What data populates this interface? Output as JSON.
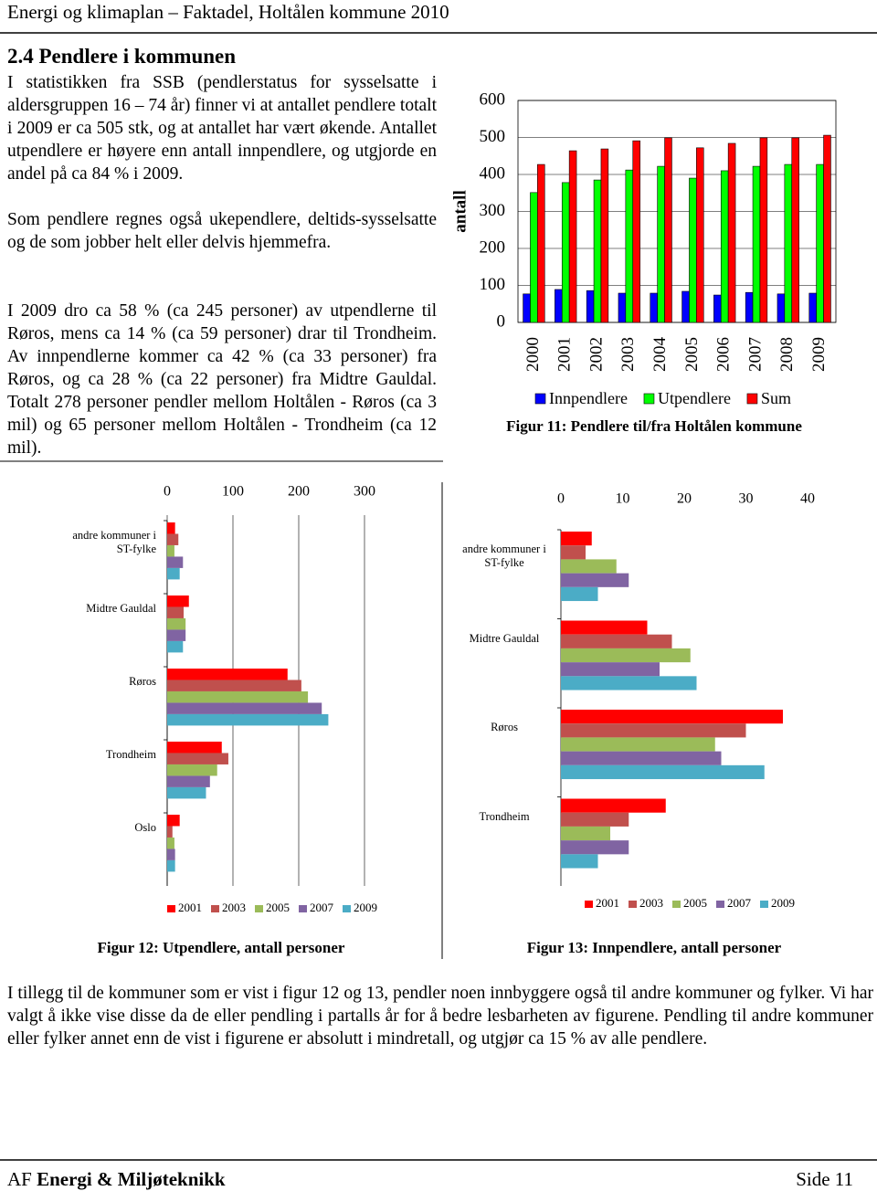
{
  "header": "Energi og klimaplan – Faktadel, Holtålen kommune 2010",
  "section_title": "2.4 Pendlere i kommunen",
  "paragraphs": [
    "I statistikken fra SSB (pendlerstatus for sysselsatte i aldersgruppen 16 – 74 år) finner vi at antallet pendlere totalt i 2009 er ca 505 stk, og at antallet har vært økende. Antallet utpendlere er høyere enn antall innpendlere, og utgjorde en andel på ca 84 % i 2009.",
    "Som pendlere regnes også ukependlere, deltids-sysselsatte og de som jobber helt eller delvis hjemmefra.",
    "I 2009 dro ca 58 % (ca 245 personer) av utpendlerne til Røros, mens ca 14 % (ca 59 personer) drar til Trondheim. Av innpendlerne kommer ca 42 % (ca 33 personer) fra Røros, og ca 28 % (ca 22 personer) fra Midtre Gauldal. Totalt 278 personer pendler mellom Holtålen - Røros (ca 3 mil) og 65 personer mellom Holtålen - Trondheim (ca 12 mil)."
  ],
  "chart_data": [
    {
      "type": "bar",
      "caption": "Figur 11: Pendlere til/fra Holtålen kommune",
      "y_label": "antall",
      "categories": [
        "2000",
        "2001",
        "2002",
        "2003",
        "2004",
        "2005",
        "2006",
        "2007",
        "2008",
        "2009"
      ],
      "series": [
        {
          "name": "Innpendlere",
          "color": "#0000ff",
          "values": [
            77,
            89,
            86,
            79,
            79,
            84,
            74,
            81,
            77,
            79
          ]
        },
        {
          "name": "Utpendlere",
          "color": "#00ff00",
          "values": [
            351,
            378,
            385,
            412,
            422,
            390,
            410,
            422,
            427,
            427
          ]
        },
        {
          "name": "Sum",
          "color": "#ff0000",
          "values": [
            427,
            464,
            469,
            491,
            499,
            472,
            484,
            499,
            499,
            506
          ]
        }
      ],
      "ylim": [
        0,
        600
      ],
      "yticks": [
        0,
        100,
        200,
        300,
        400,
        500,
        600
      ],
      "grid": true
    },
    {
      "type": "barh",
      "caption": "Figur 12: Utpendlere, antall personer",
      "categories": [
        "andre kommuner i ST-fylke",
        "Midtre Gauldal",
        "Røros",
        "Trondheim",
        "Oslo"
      ],
      "series": [
        {
          "name": "2001",
          "color": "#ff0000",
          "values": [
            12,
            33,
            183,
            83,
            19
          ]
        },
        {
          "name": "2003",
          "color": "#c0504d",
          "values": [
            17,
            25,
            204,
            93,
            8
          ]
        },
        {
          "name": "2005",
          "color": "#9bbb59",
          "values": [
            11,
            28,
            214,
            76,
            11
          ]
        },
        {
          "name": "2007",
          "color": "#8064a2",
          "values": [
            24,
            28,
            235,
            65,
            12
          ]
        },
        {
          "name": "2009",
          "color": "#4bacc6",
          "values": [
            19,
            24,
            245,
            59,
            12
          ]
        }
      ],
      "xlim": [
        0,
        300
      ],
      "xticks": [
        0,
        100,
        200,
        300
      ],
      "grid": true
    },
    {
      "type": "barh",
      "caption": "Figur 13: Innpendlere, antall personer",
      "categories": [
        "andre kommuner i ST-fylke",
        "Midtre Gauldal",
        "Røros",
        "Trondheim"
      ],
      "series": [
        {
          "name": "2001",
          "color": "#ff0000",
          "values": [
            5,
            14,
            36,
            17
          ]
        },
        {
          "name": "2003",
          "color": "#c0504d",
          "values": [
            4,
            18,
            30,
            11
          ]
        },
        {
          "name": "2005",
          "color": "#9bbb59",
          "values": [
            9,
            21,
            25,
            8
          ]
        },
        {
          "name": "2007",
          "color": "#8064a2",
          "values": [
            11,
            16,
            26,
            11
          ]
        },
        {
          "name": "2009",
          "color": "#4bacc6",
          "values": [
            6,
            22,
            33,
            6
          ]
        }
      ],
      "xlim": [
        0,
        40
      ],
      "xticks": [
        0,
        10,
        20,
        30,
        40
      ],
      "grid": false
    }
  ],
  "bottom_text": "I tillegg til de kommuner som er vist i figur 12 og 13, pendler noen innbyggere også til andre kommuner og fylker. Vi har valgt å ikke vise disse da de eller pendling i partalls år for å bedre lesbarheten av figurene. Pendling til andre kommuner eller fylker annet enn de vist i figurene er absolutt i mindretall, og utgjør ca 15 % av alle pendlere.",
  "footer": {
    "prefix": "AF",
    "company": "Energi & Miljøteknikk",
    "page": "Side 11"
  }
}
